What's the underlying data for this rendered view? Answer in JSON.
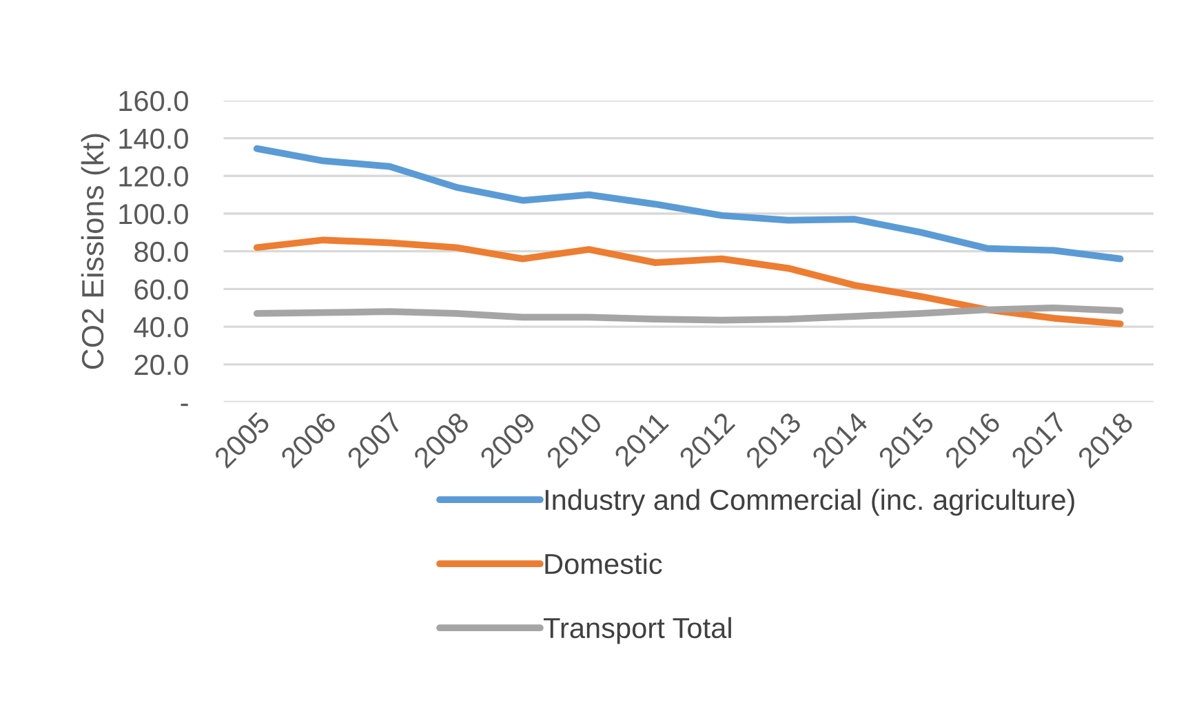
{
  "chart_data": {
    "type": "line",
    "ylabel": "CO2 Eissions (kt)",
    "categories": [
      "2005",
      "2006",
      "2007",
      "2008",
      "2009",
      "2010",
      "2011",
      "2012",
      "2013",
      "2014",
      "2015",
      "2016",
      "2017",
      "2018"
    ],
    "series": [
      {
        "name": "Industry and Commercial (inc. agriculture)",
        "color": "#5b9bd5",
        "values": [
          134.5,
          128,
          125,
          114,
          107,
          110,
          105,
          99,
          96.5,
          97,
          90,
          81.5,
          80.5,
          76
        ]
      },
      {
        "name": "Domestic",
        "color": "#ed7d31",
        "values": [
          82,
          86,
          84.5,
          82,
          76,
          81,
          74,
          76,
          71,
          62,
          56,
          49,
          44.5,
          41.5
        ]
      },
      {
        "name": "Transport Total",
        "color": "#a5a5a5",
        "values": [
          47,
          47.5,
          48,
          47,
          45,
          45,
          44,
          43.5,
          44,
          45.5,
          47,
          49,
          50,
          48.5
        ]
      }
    ],
    "ylim": [
      0,
      160
    ],
    "yticks": [
      {
        "value": 0,
        "label": "-"
      },
      {
        "value": 20,
        "label": "20.0"
      },
      {
        "value": 40,
        "label": "40.0"
      },
      {
        "value": 60,
        "label": "60.0"
      },
      {
        "value": 80,
        "label": "80.0"
      },
      {
        "value": 100,
        "label": "100.0"
      },
      {
        "value": 120,
        "label": "120.0"
      },
      {
        "value": 140,
        "label": "140.0"
      },
      {
        "value": 160,
        "label": "160.0"
      }
    ],
    "grid": "y",
    "legend": "bottom",
    "marker": "none",
    "line_style": "solid"
  }
}
